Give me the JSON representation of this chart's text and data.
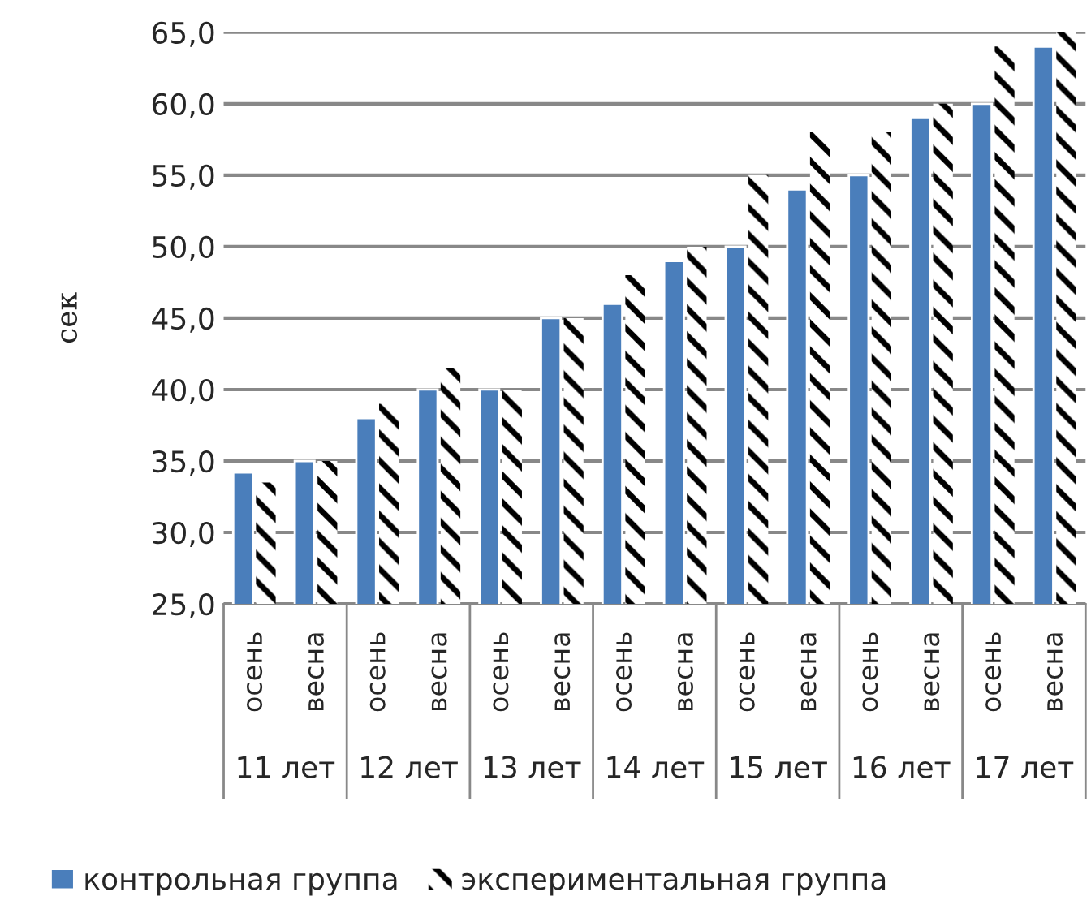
{
  "chart_data": {
    "type": "bar",
    "ylabel": "сек",
    "categories": [
      "осень",
      "весна",
      "осень",
      "весна",
      "осень",
      "весна",
      "осень",
      "весна",
      "осень",
      "весна",
      "осень",
      "весна",
      "осень",
      "весна"
    ],
    "series": [
      {
        "name": "контрольная группа",
        "color": "#4a7ebb",
        "values": [
          34.2,
          35.0,
          38.0,
          40.0,
          40.0,
          45.0,
          46.0,
          49.0,
          50.0,
          54.0,
          55.0,
          59.0,
          60.0,
          64.0
        ]
      },
      {
        "name": "экспериментальная группа",
        "color": "#000000",
        "values": [
          33.5,
          35.0,
          39.0,
          41.5,
          40.0,
          45.0,
          48.0,
          50.0,
          55.0,
          58.0,
          58.0,
          60.0,
          64.0,
          65.0
        ]
      }
    ],
    "annotations": [
      "11 лет",
      "12 лет",
      "13 лет",
      "14 лет",
      "15 лет",
      "16 лет",
      "17 лет"
    ],
    "ylim": [
      25,
      65
    ],
    "yticks": [
      {
        "value": 25,
        "label": "25,0"
      },
      {
        "value": 30,
        "label": "30,0"
      },
      {
        "value": 35,
        "label": "35,0"
      },
      {
        "value": 40,
        "label": "40,0"
      },
      {
        "value": 45,
        "label": "45,0"
      },
      {
        "value": 50,
        "label": "50,0"
      },
      {
        "value": 55,
        "label": "55,0"
      },
      {
        "value": 60,
        "label": "60,0"
      },
      {
        "value": 65,
        "label": "65,0"
      }
    ],
    "grid": "y",
    "legend": "bottom"
  }
}
